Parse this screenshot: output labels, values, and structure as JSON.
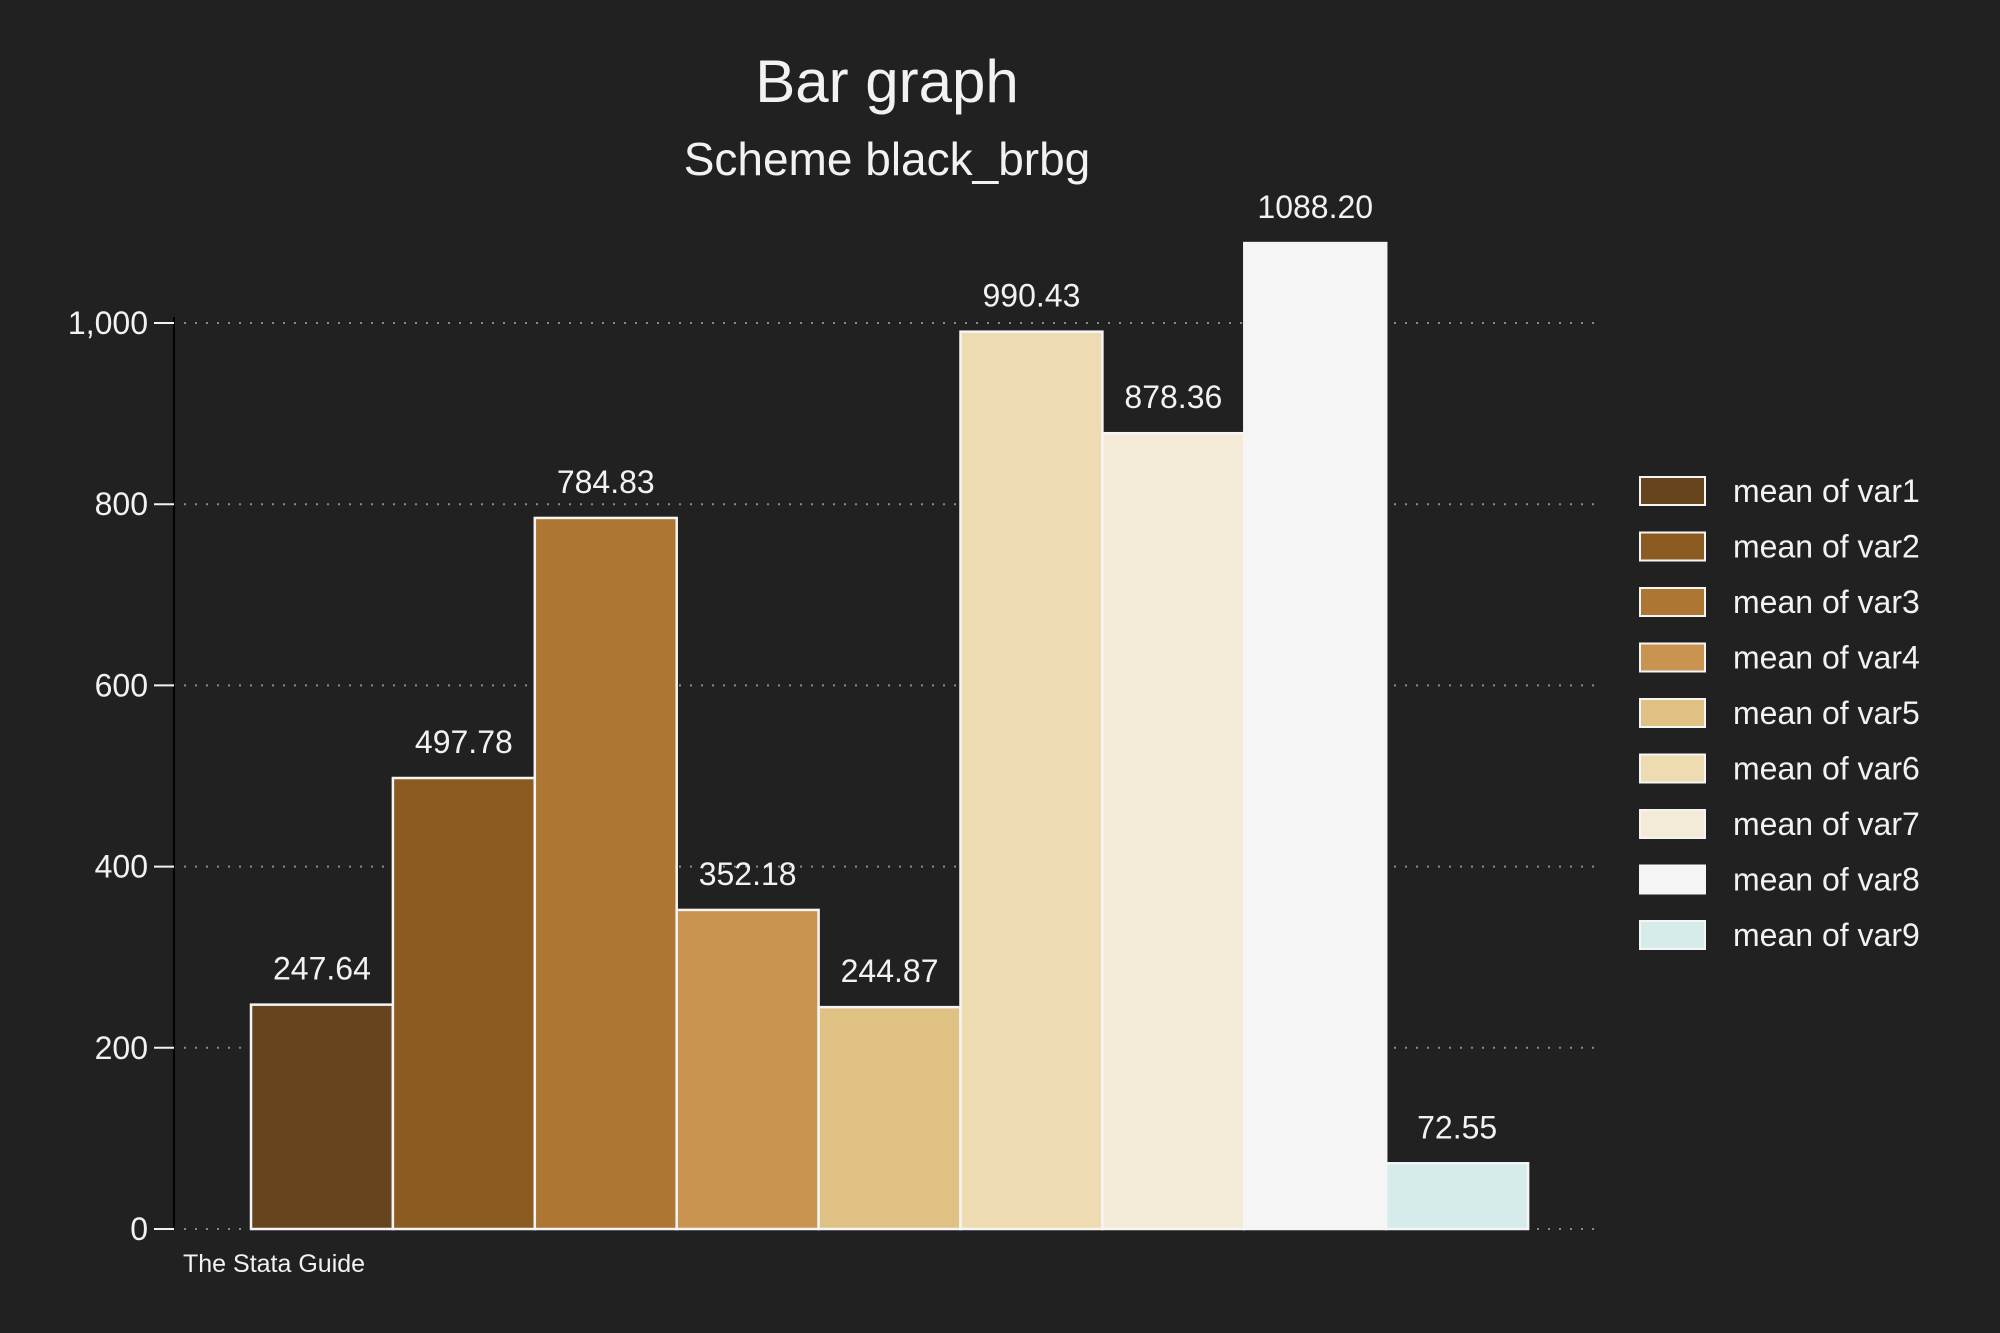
{
  "chart_data": {
    "type": "bar",
    "title": "Bar graph",
    "subtitle": "Scheme black_brbg",
    "note": "The Stata Guide",
    "ylim": [
      0,
      1100
    ],
    "yticks": [
      0,
      200,
      400,
      600,
      800,
      1000
    ],
    "ytick_labels": [
      "0",
      "200",
      "400",
      "600",
      "800",
      "1,000"
    ],
    "grid": true,
    "legend_position": "right",
    "series": [
      {
        "name": "mean of var1",
        "value": 247.64,
        "label": "247.64",
        "color": "#66451e"
      },
      {
        "name": "mean of var2",
        "value": 497.78,
        "label": "497.78",
        "color": "#8b5b22"
      },
      {
        "name": "mean of var3",
        "value": 784.83,
        "label": "784.83",
        "color": "#ad7633"
      },
      {
        "name": "mean of var4",
        "value": 352.18,
        "label": "352.18",
        "color": "#c9944f"
      },
      {
        "name": "mean of var5",
        "value": 244.87,
        "label": "244.87",
        "color": "#dfc283"
      },
      {
        "name": "mean of var6",
        "value": 990.43,
        "label": "990.43",
        "color": "#eedbb1"
      },
      {
        "name": "mean of var7",
        "value": 878.36,
        "label": "878.36",
        "color": "#f3ead7"
      },
      {
        "name": "mean of var8",
        "value": 1088.2,
        "label": "1088.20",
        "color": "#f5f5f5"
      },
      {
        "name": "mean of var9",
        "value": 72.55,
        "label": "72.55",
        "color": "#d5ecea"
      }
    ]
  },
  "colors": {
    "background": "#212121",
    "text": "#f2f2f2",
    "grid": "#8a8a8a",
    "bar_outline": "#f5f5f5",
    "axis": "#000000"
  }
}
